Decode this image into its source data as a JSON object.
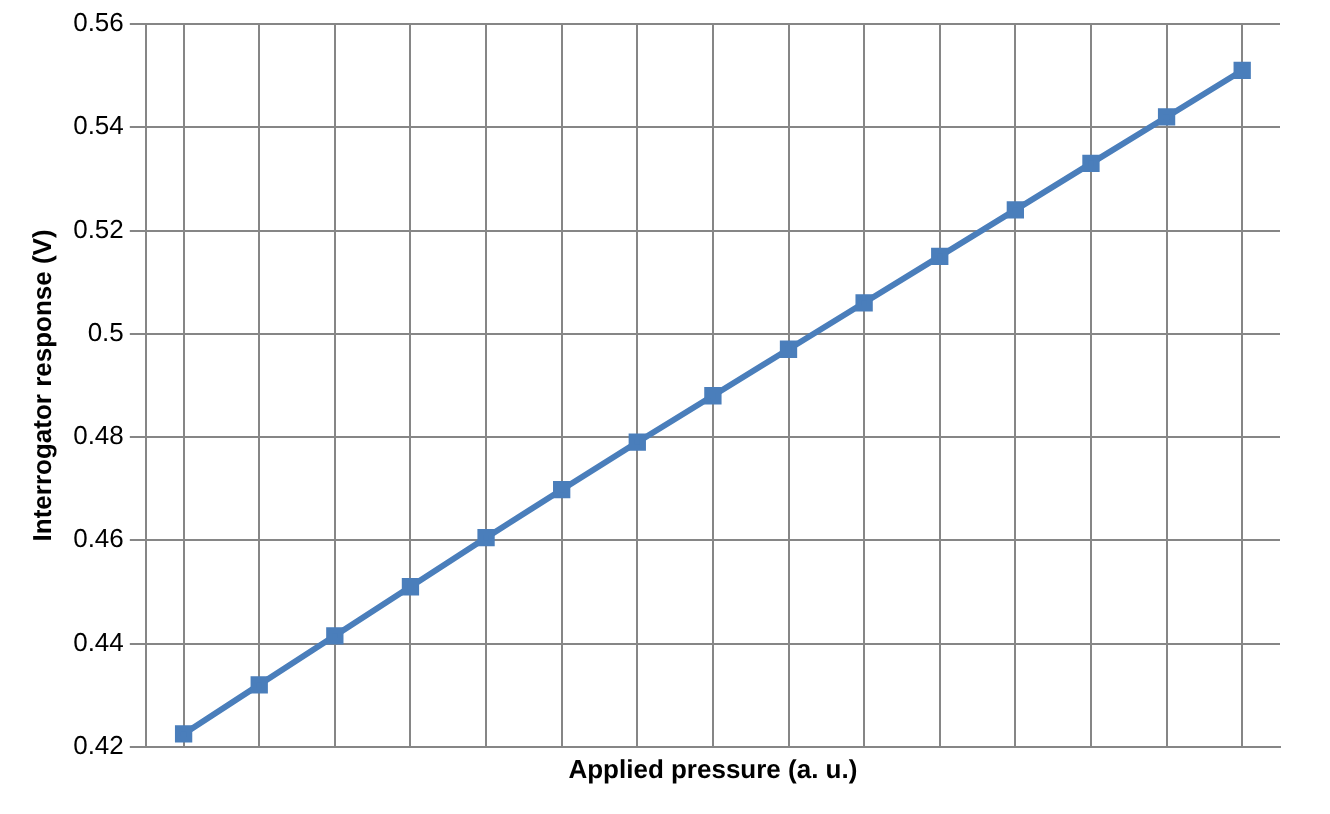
{
  "chart_data": {
    "type": "line",
    "xlabel": "Applied pressure (a. u.)",
    "ylabel": "Interrogator response (V)",
    "categories": [
      null,
      null,
      null,
      null,
      null,
      null,
      null,
      null,
      null,
      null,
      null,
      null,
      null,
      null,
      null
    ],
    "series": [
      {
        "color": "#4a7ebb",
        "values": [
          0.4225,
          0.432,
          0.4415,
          0.451,
          0.4605,
          0.4698,
          0.479,
          0.488,
          0.497,
          0.506,
          0.515,
          0.524,
          0.533,
          0.542,
          0.551
        ]
      }
    ],
    "ylim": [
      0.42,
      0.56
    ],
    "yticks": [
      0.42,
      0.44,
      0.46,
      0.48,
      0.5,
      0.52,
      0.54,
      0.56
    ],
    "grid": true,
    "legend": false,
    "marker": "square",
    "line_style": "solid",
    "tick_labels": "y"
  }
}
